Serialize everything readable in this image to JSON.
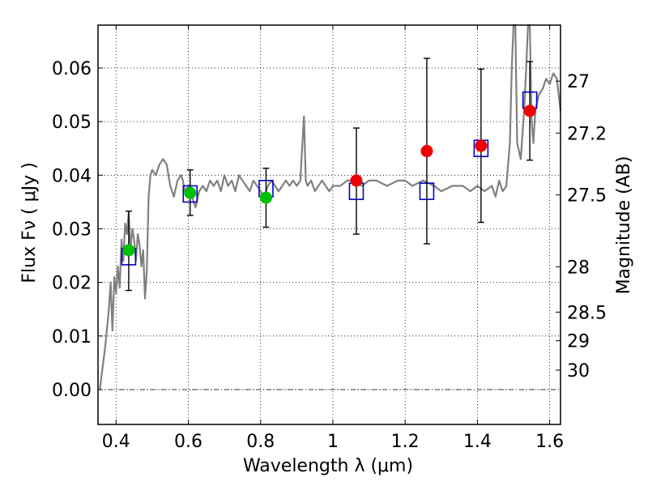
{
  "chart_data": {
    "type": "scatter",
    "xlabel": "Wavelength  λ (μm)",
    "ylabel": "Flux  Fν  ( μJy )",
    "y2label": "Magnitude (AB)",
    "xlim": [
      0.35,
      1.63
    ],
    "ylim": [
      -0.0065,
      0.068
    ],
    "grid": true,
    "x_ticks": [
      {
        "v": 0.4,
        "label": "0.4"
      },
      {
        "v": 0.6,
        "label": "0.6"
      },
      {
        "v": 0.8,
        "label": "0.8"
      },
      {
        "v": 1.0,
        "label": "1"
      },
      {
        "v": 1.2,
        "label": "1.2"
      },
      {
        "v": 1.4,
        "label": "1.4"
      },
      {
        "v": 1.6,
        "label": "1.6"
      }
    ],
    "y_ticks": [
      {
        "v": 0.0,
        "label": "0.00"
      },
      {
        "v": 0.01,
        "label": "0.01"
      },
      {
        "v": 0.02,
        "label": "0.02"
      },
      {
        "v": 0.03,
        "label": "0.03"
      },
      {
        "v": 0.04,
        "label": "0.04"
      },
      {
        "v": 0.05,
        "label": "0.05"
      },
      {
        "v": 0.06,
        "label": "0.06"
      }
    ],
    "mag_ticks": [
      {
        "v": 27.0,
        "label": "27"
      },
      {
        "v": 27.2,
        "label": "27.2"
      },
      {
        "v": 27.5,
        "label": "27.5"
      },
      {
        "v": 28.0,
        "label": "28"
      },
      {
        "v": 28.5,
        "label": "28.5"
      },
      {
        "v": 29.0,
        "label": "29"
      },
      {
        "v": 30.0,
        "label": "30"
      }
    ],
    "model_spectrum": {
      "color": "#808080",
      "x": [
        0.355,
        0.37,
        0.38,
        0.385,
        0.39,
        0.395,
        0.4,
        0.405,
        0.41,
        0.415,
        0.42,
        0.425,
        0.43,
        0.435,
        0.44,
        0.445,
        0.45,
        0.455,
        0.46,
        0.465,
        0.47,
        0.475,
        0.48,
        0.485,
        0.49,
        0.495,
        0.5,
        0.51,
        0.52,
        0.53,
        0.54,
        0.55,
        0.56,
        0.57,
        0.58,
        0.585,
        0.59,
        0.6,
        0.61,
        0.62,
        0.63,
        0.64,
        0.65,
        0.66,
        0.67,
        0.68,
        0.69,
        0.7,
        0.71,
        0.72,
        0.73,
        0.74,
        0.75,
        0.76,
        0.77,
        0.78,
        0.79,
        0.8,
        0.81,
        0.82,
        0.83,
        0.84,
        0.85,
        0.86,
        0.87,
        0.88,
        0.89,
        0.9,
        0.91,
        0.915,
        0.92,
        0.925,
        0.93,
        0.94,
        0.95,
        0.96,
        0.97,
        0.98,
        0.99,
        1.0,
        1.02,
        1.04,
        1.06,
        1.08,
        1.1,
        1.12,
        1.15,
        1.18,
        1.2,
        1.22,
        1.25,
        1.28,
        1.3,
        1.33,
        1.36,
        1.38,
        1.4,
        1.42,
        1.44,
        1.45,
        1.46,
        1.47,
        1.48,
        1.49,
        1.495,
        1.5,
        1.505,
        1.51,
        1.52,
        1.525,
        1.53,
        1.535,
        1.54,
        1.545,
        1.55,
        1.555,
        1.56,
        1.57,
        1.58,
        1.59,
        1.6,
        1.61,
        1.62,
        1.63
      ],
      "y": [
        0.0,
        0.008,
        0.015,
        0.02,
        0.011,
        0.021,
        0.018,
        0.023,
        0.019,
        0.028,
        0.024,
        0.031,
        0.029,
        0.033,
        0.026,
        0.03,
        0.028,
        0.024,
        0.029,
        0.027,
        0.023,
        0.026,
        0.017,
        0.022,
        0.036,
        0.04,
        0.041,
        0.04,
        0.042,
        0.043,
        0.042,
        0.038,
        0.036,
        0.039,
        0.04,
        0.039,
        0.037,
        0.038,
        0.036,
        0.034,
        0.037,
        0.038,
        0.037,
        0.039,
        0.038,
        0.039,
        0.037,
        0.04,
        0.038,
        0.039,
        0.037,
        0.04,
        0.039,
        0.038,
        0.037,
        0.039,
        0.038,
        0.037,
        0.036,
        0.038,
        0.039,
        0.038,
        0.037,
        0.038,
        0.039,
        0.038,
        0.039,
        0.038,
        0.039,
        0.045,
        0.051,
        0.039,
        0.038,
        0.039,
        0.037,
        0.038,
        0.039,
        0.038,
        0.037,
        0.038,
        0.038,
        0.039,
        0.039,
        0.038,
        0.039,
        0.039,
        0.038,
        0.039,
        0.039,
        0.038,
        0.039,
        0.038,
        0.037,
        0.038,
        0.038,
        0.037,
        0.038,
        0.037,
        0.038,
        0.036,
        0.039,
        0.037,
        0.038,
        0.046,
        0.06,
        0.068,
        0.068,
        0.046,
        0.043,
        0.048,
        0.053,
        0.06,
        0.068,
        0.068,
        0.05,
        0.046,
        0.052,
        0.055,
        0.056,
        0.058,
        0.057,
        0.059,
        0.058,
        0.052
      ]
    },
    "box_markers": {
      "color": "#0000cc",
      "x": [
        0.435,
        0.605,
        0.815,
        1.065,
        1.26,
        1.41,
        1.545
      ],
      "y": [
        0.0248,
        0.0365,
        0.0375,
        0.037,
        0.037,
        0.045,
        0.054
      ]
    },
    "green_points": {
      "color": "#00c000",
      "x": [
        0.435,
        0.605,
        0.815
      ],
      "y": [
        0.026,
        0.0367,
        0.0358
      ],
      "err_low": [
        0.0185,
        0.0325,
        0.0303
      ],
      "err_high": [
        0.0333,
        0.041,
        0.0413
      ]
    },
    "red_points": {
      "color": "#ee0000",
      "x": [
        1.065,
        1.26,
        1.41,
        1.545
      ],
      "y": [
        0.039,
        0.0445,
        0.0455,
        0.052
      ],
      "err_low": [
        0.029,
        0.0272,
        0.0312,
        0.0428
      ],
      "err_high": [
        0.0488,
        0.0618,
        0.0598,
        0.0612
      ]
    }
  }
}
